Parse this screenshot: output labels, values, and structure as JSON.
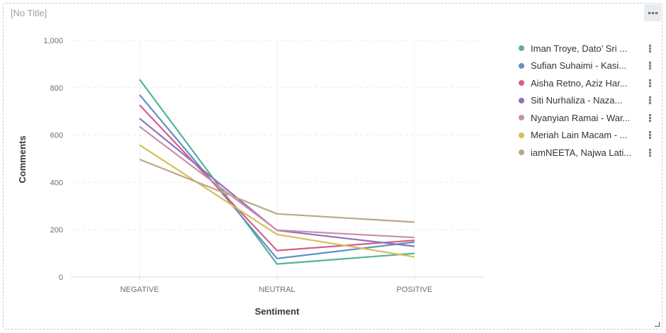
{
  "panel": {
    "title": "[No Title]"
  },
  "chart_data": {
    "type": "line",
    "xlabel": "Sentiment",
    "ylabel": "Comments",
    "ylim": [
      0,
      1000
    ],
    "y_ticks": [
      "0",
      "200",
      "400",
      "600",
      "800",
      "1,000"
    ],
    "y_tick_values": [
      0,
      200,
      400,
      600,
      800,
      1000
    ],
    "categories": [
      "NEGATIVE",
      "NEUTRAL",
      "POSITIVE"
    ],
    "grid": "horizontal dashed",
    "legend": "right",
    "series": [
      {
        "name": "Iman Troye, Dato’ Sri ...",
        "color": "#54b399",
        "values": [
          835,
          55,
          100
        ]
      },
      {
        "name": "Sufian Suhaimi - Kasi...",
        "color": "#6092c0",
        "values": [
          770,
          78,
          148
        ]
      },
      {
        "name": "Aisha Retno, Aziz Har...",
        "color": "#d36086",
        "values": [
          727,
          112,
          155
        ]
      },
      {
        "name": "Siti Nurhaliza - Naza...",
        "color": "#9170b8",
        "values": [
          670,
          197,
          130
        ]
      },
      {
        "name": "Nyanyian Ramai - War...",
        "color": "#ca8eae",
        "values": [
          636,
          198,
          167
        ]
      },
      {
        "name": "Meriah Lain Macam - ...",
        "color": "#d6bf57",
        "values": [
          558,
          180,
          85
        ]
      },
      {
        "name": "iamNEETA, Najwa Lati...",
        "color": "#b9a888",
        "values": [
          497,
          267,
          232
        ]
      }
    ]
  }
}
